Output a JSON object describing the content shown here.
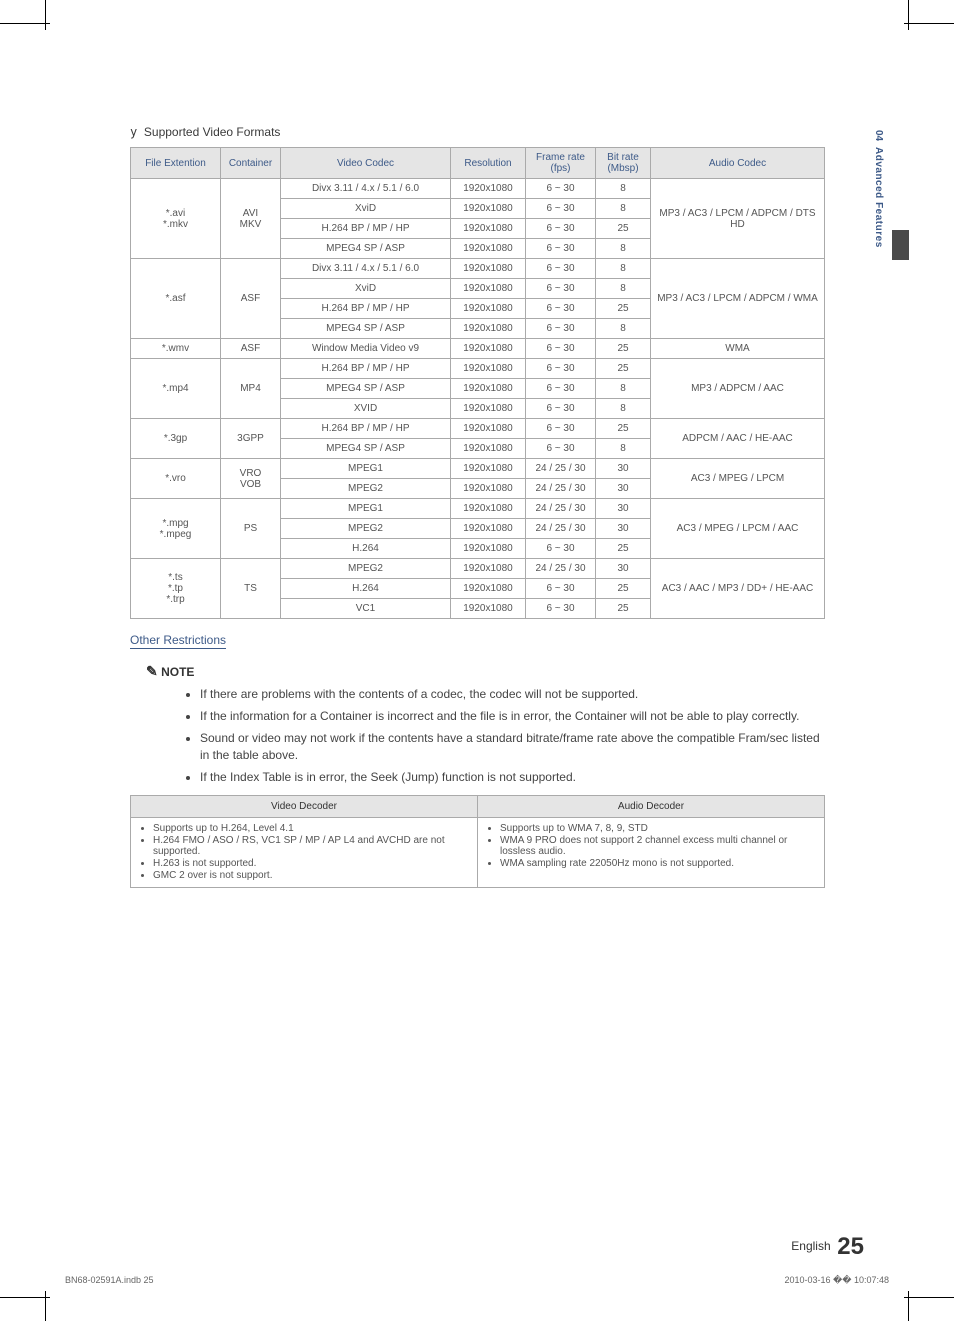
{
  "section_bullet": "y",
  "section_title": "Supported Video Formats",
  "sidebar": {
    "chapter_num": "04",
    "chapter_title": "Advanced Features"
  },
  "headers": {
    "file_ext": "File Extention",
    "container": "Container",
    "video_codec": "Video Codec",
    "resolution": "Resolution",
    "frame_rate": "Frame rate (fps)",
    "bit_rate": "Bit rate (Mbsp)",
    "audio_codec": "Audio Codec"
  },
  "groups": [
    {
      "file_ext": "*.avi\n*.mkv",
      "container": "AVI\nMKV",
      "audio_codec": "MP3 / AC3 / LPCM / ADPCM / DTS HD",
      "rows": [
        {
          "codec": "Divx 3.11 / 4.x / 5.1 / 6.0",
          "res": "1920x1080",
          "fps": "6 ~ 30",
          "br": "8"
        },
        {
          "codec": "XviD",
          "res": "1920x1080",
          "fps": "6 ~ 30",
          "br": "8"
        },
        {
          "codec": "H.264 BP / MP / HP",
          "res": "1920x1080",
          "fps": "6 ~ 30",
          "br": "25"
        },
        {
          "codec": "MPEG4 SP / ASP",
          "res": "1920x1080",
          "fps": "6 ~ 30",
          "br": "8"
        }
      ]
    },
    {
      "file_ext": "*.asf",
      "container": "ASF",
      "audio_codec": "MP3 / AC3 / LPCM / ADPCM / WMA",
      "rows": [
        {
          "codec": "Divx 3.11 / 4.x / 5.1 / 6.0",
          "res": "1920x1080",
          "fps": "6 ~ 30",
          "br": "8"
        },
        {
          "codec": "XviD",
          "res": "1920x1080",
          "fps": "6 ~ 30",
          "br": "8"
        },
        {
          "codec": "H.264 BP / MP / HP",
          "res": "1920x1080",
          "fps": "6 ~ 30",
          "br": "25"
        },
        {
          "codec": "MPEG4 SP / ASP",
          "res": "1920x1080",
          "fps": "6 ~ 30",
          "br": "8"
        }
      ]
    },
    {
      "file_ext": "*.wmv",
      "container": "ASF",
      "audio_codec": "WMA",
      "rows": [
        {
          "codec": "Window Media Video v9",
          "res": "1920x1080",
          "fps": "6 ~ 30",
          "br": "25"
        }
      ]
    },
    {
      "file_ext": "*.mp4",
      "container": "MP4",
      "audio_codec": "MP3 / ADPCM / AAC",
      "rows": [
        {
          "codec": "H.264 BP / MP / HP",
          "res": "1920x1080",
          "fps": "6 ~ 30",
          "br": "25"
        },
        {
          "codec": "MPEG4 SP / ASP",
          "res": "1920x1080",
          "fps": "6 ~ 30",
          "br": "8"
        },
        {
          "codec": "XVID",
          "res": "1920x1080",
          "fps": "6 ~ 30",
          "br": "8"
        }
      ]
    },
    {
      "file_ext": "*.3gp",
      "container": "3GPP",
      "audio_codec": "ADPCM / AAC / HE-AAC",
      "rows": [
        {
          "codec": "H.264 BP / MP / HP",
          "res": "1920x1080",
          "fps": "6 ~ 30",
          "br": "25"
        },
        {
          "codec": "MPEG4 SP / ASP",
          "res": "1920x1080",
          "fps": "6 ~ 30",
          "br": "8"
        }
      ]
    },
    {
      "file_ext": "*.vro",
      "container": "VRO\nVOB",
      "audio_codec": "AC3 / MPEG / LPCM",
      "rows": [
        {
          "codec": "MPEG1",
          "res": "1920x1080",
          "fps": "24 / 25 / 30",
          "br": "30"
        },
        {
          "codec": "MPEG2",
          "res": "1920x1080",
          "fps": "24 / 25 / 30",
          "br": "30"
        }
      ]
    },
    {
      "file_ext": "*.mpg\n*.mpeg",
      "container": "PS",
      "audio_codec": "AC3 / MPEG / LPCM / AAC",
      "rows": [
        {
          "codec": "MPEG1",
          "res": "1920x1080",
          "fps": "24 / 25 / 30",
          "br": "30"
        },
        {
          "codec": "MPEG2",
          "res": "1920x1080",
          "fps": "24 / 25 / 30",
          "br": "30"
        },
        {
          "codec": "H.264",
          "res": "1920x1080",
          "fps": "6 ~ 30",
          "br": "25"
        }
      ]
    },
    {
      "file_ext": "*.ts\n*.tp\n*.trp",
      "container": "TS",
      "audio_codec": "AC3 / AAC / MP3 / DD+ / HE-AAC",
      "rows": [
        {
          "codec": "MPEG2",
          "res": "1920x1080",
          "fps": "24 / 25 / 30",
          "br": "30"
        },
        {
          "codec": "H.264",
          "res": "1920x1080",
          "fps": "6 ~ 30",
          "br": "25"
        },
        {
          "codec": "VC1",
          "res": "1920x1080",
          "fps": "6 ~ 30",
          "br": "25"
        }
      ]
    }
  ],
  "other_heading": "Other Restrictions",
  "note_icon": "✎",
  "note_label": "NOTE",
  "notes": [
    "If there are problems with the contents of a codec, the codec will not be supported.",
    "If the information for a Container is incorrect and the file is in error, the Container will not be able to play correctly.",
    "Sound or video may not work if the contents have a standard bitrate/frame rate above the compatible Fram/sec listed in the table above.",
    "If the Index Table is in error, the Seek (Jump) function is not supported."
  ],
  "decoder_table": {
    "video_header": "Video Decoder",
    "audio_header": "Audio Decoder",
    "video_items": [
      "Supports up to H.264, Level 4.1",
      "H.264 FMO / ASO / RS, VC1 SP / MP / AP L4 and AVCHD are not supported.",
      "H.263 is not supported.",
      "GMC 2 over is not support."
    ],
    "audio_items": [
      "Supports up to WMA 7, 8, 9, STD",
      "WMA 9 PRO does not support 2 channel excess multi channel or lossless audio.",
      "WMA sampling rate 22050Hz mono is not supported."
    ]
  },
  "footer": {
    "language": "English",
    "page_number": "25",
    "doc_ref": "BN68-02591A.indb   25",
    "print_time": "2010-03-16   �� 10:07:48"
  },
  "colors": {
    "header_bg": "#e5e5e5",
    "header_text": "#3d5a88",
    "border": "#aaaaaa",
    "body_text": "#555555",
    "sidebar_bar": "#4a4a4a"
  }
}
